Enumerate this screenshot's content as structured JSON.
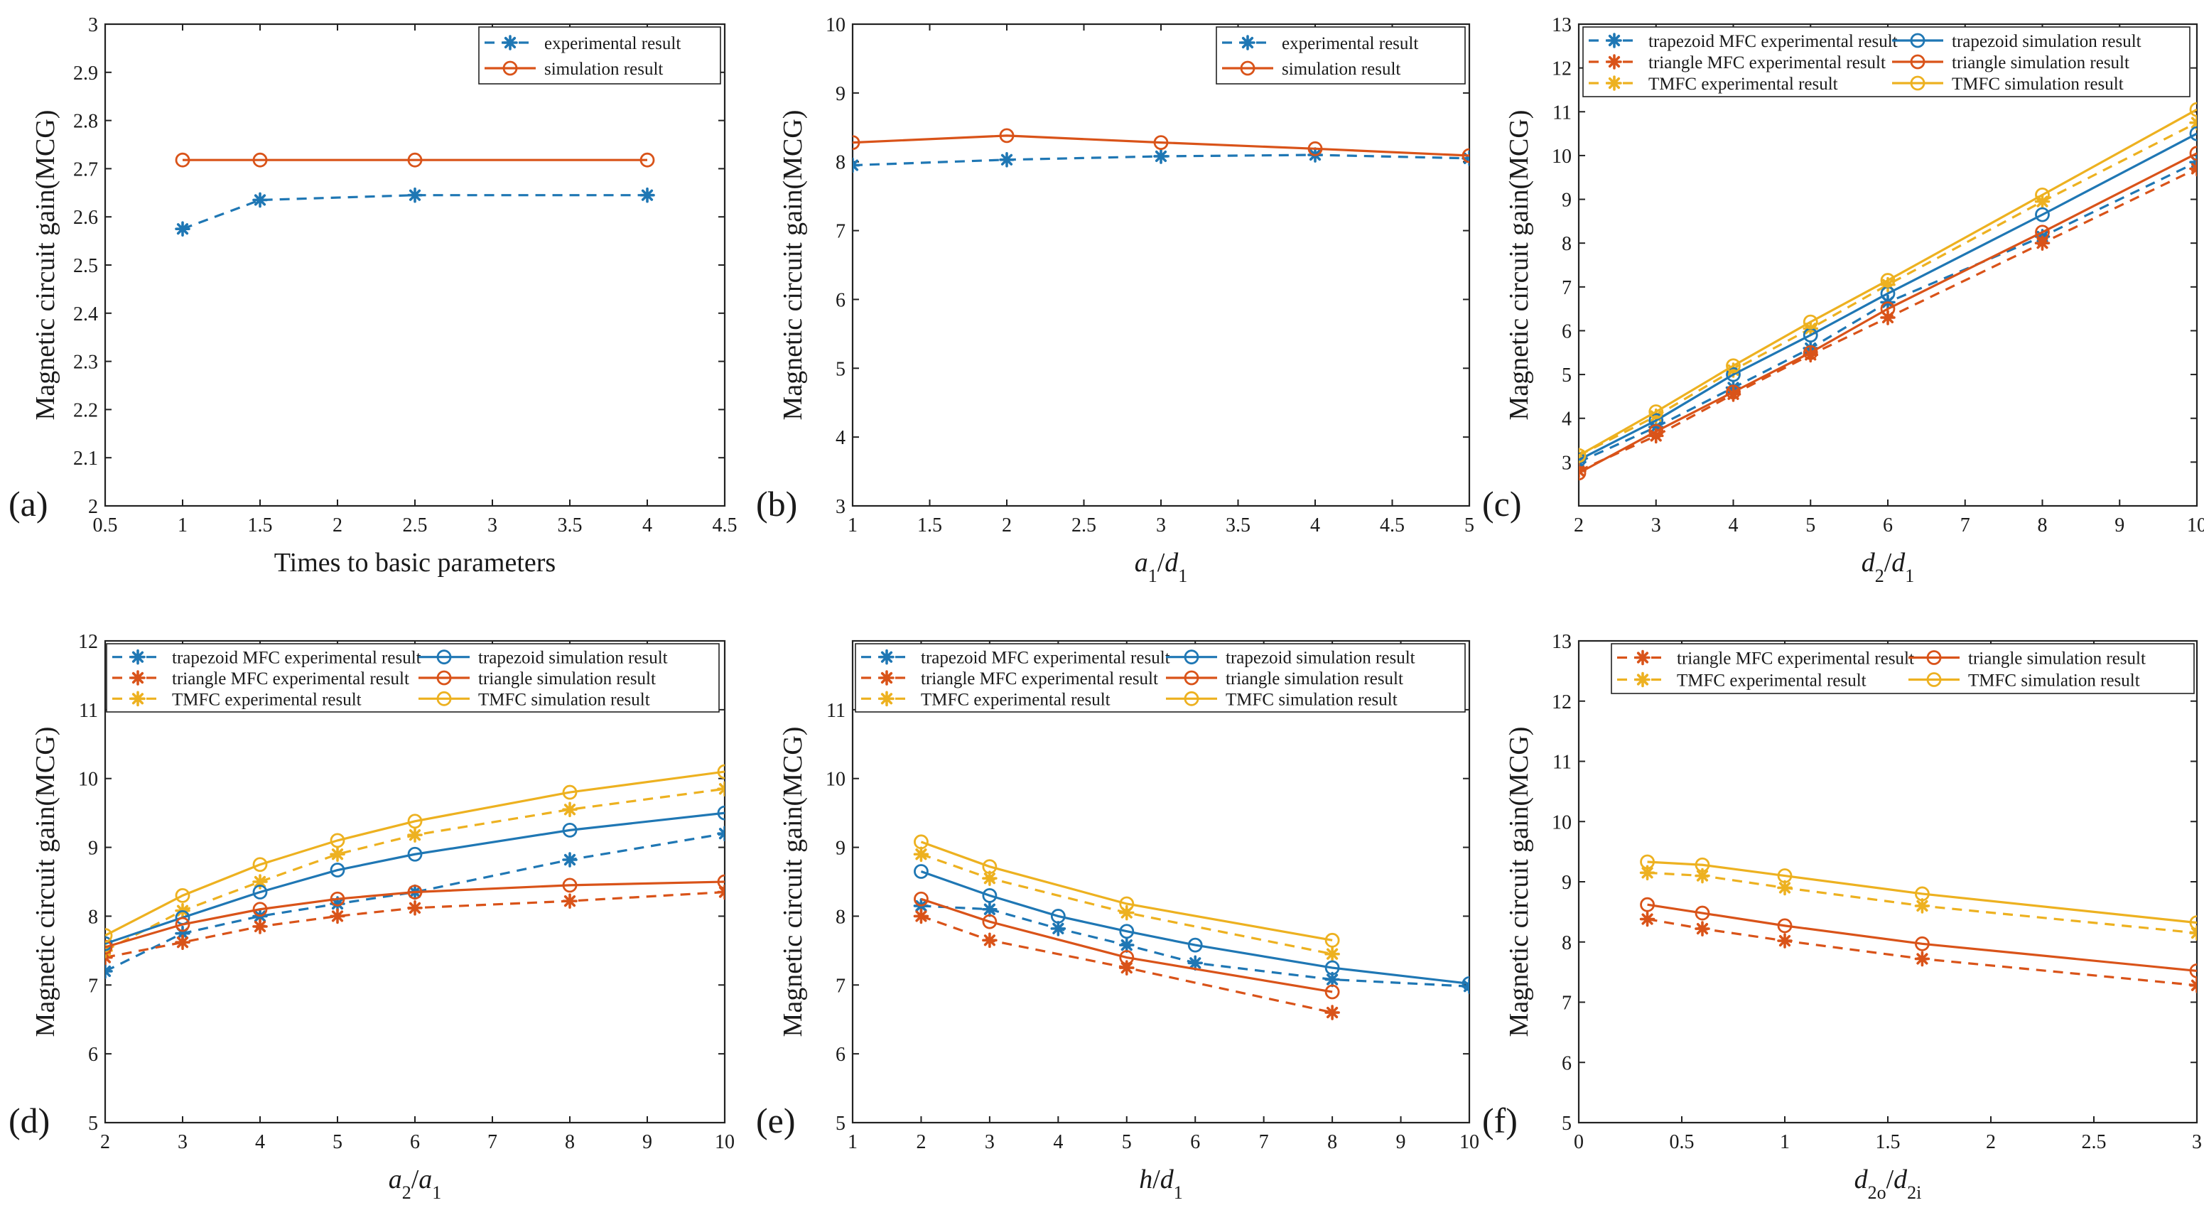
{
  "colors": {
    "blue": "#1f77b4",
    "red": "#d95319",
    "yellow": "#edb120",
    "axis": "#222222"
  },
  "chart_data": [
    {
      "type": "line",
      "panel_label": "(a)",
      "xlabel": "Times to basic parameters",
      "ylabel": "Magnetic circuit gain(MCG)",
      "xlim": [
        0.5,
        4.5
      ],
      "ylim": [
        2,
        3
      ],
      "xticks": [
        0.5,
        1,
        1.5,
        2,
        2.5,
        3,
        3.5,
        4,
        4.5
      ],
      "xtick_labels": [
        "0.5",
        "1",
        "1.5",
        "2",
        "2.5",
        "3",
        "3.5",
        "4",
        "4.5"
      ],
      "yticks": [
        2,
        2.1,
        2.2,
        2.3,
        2.4,
        2.5,
        2.6,
        2.7,
        2.8,
        2.9,
        3
      ],
      "ytick_labels": [
        "2",
        "2.1",
        "2.2",
        "2.3",
        "2.4",
        "2.5",
        "2.6",
        "2.7",
        "2.8",
        "2.9",
        "3"
      ],
      "legend_position": "top-right",
      "legend_columns": 1,
      "series": [
        {
          "name": "experimental result",
          "color": "#1f77b4",
          "style": "dashed",
          "marker": "star",
          "x": [
            1,
            1.5,
            2.5,
            4
          ],
          "y": [
            2.575,
            2.635,
            2.645,
            2.645
          ]
        },
        {
          "name": "simulation result",
          "color": "#d95319",
          "style": "solid",
          "marker": "circle",
          "x": [
            1,
            1.5,
            2.5,
            4
          ],
          "y": [
            2.718,
            2.718,
            2.718,
            2.718
          ]
        }
      ]
    },
    {
      "type": "line",
      "panel_label": "(b)",
      "xlabel": "a1/d1",
      "xlabel_parts": [
        {
          "t": "a",
          "i": true
        },
        {
          "t": "1",
          "sub": true
        },
        {
          "t": "/"
        },
        {
          "t": "d",
          "i": true
        },
        {
          "t": "1",
          "sub": true
        }
      ],
      "ylabel": "Magnetic circuit gain(MCG)",
      "xlim": [
        1,
        5
      ],
      "ylim": [
        3,
        10
      ],
      "xticks": [
        1,
        1.5,
        2,
        2.5,
        3,
        3.5,
        4,
        4.5,
        5
      ],
      "xtick_labels": [
        "1",
        "1.5",
        "2",
        "2.5",
        "3",
        "3.5",
        "4",
        "4.5",
        "5"
      ],
      "yticks": [
        3,
        4,
        5,
        6,
        7,
        8,
        9,
        10
      ],
      "ytick_labels": [
        "3",
        "4",
        "5",
        "6",
        "7",
        "8",
        "9",
        "10"
      ],
      "legend_position": "top-right",
      "legend_columns": 1,
      "series": [
        {
          "name": "experimental result",
          "color": "#1f77b4",
          "style": "dashed",
          "marker": "star",
          "x": [
            1,
            2,
            3,
            4,
            5
          ],
          "y": [
            7.95,
            8.03,
            8.08,
            8.1,
            8.05
          ]
        },
        {
          "name": "simulation result",
          "color": "#d95319",
          "style": "solid",
          "marker": "circle",
          "x": [
            1,
            2,
            3,
            4,
            5
          ],
          "y": [
            8.28,
            8.38,
            8.28,
            8.19,
            8.09
          ]
        }
      ]
    },
    {
      "type": "line",
      "panel_label": "(c)",
      "xlabel": "d2/d1",
      "xlabel_parts": [
        {
          "t": "d",
          "i": true
        },
        {
          "t": "2",
          "sub": true
        },
        {
          "t": "/"
        },
        {
          "t": "d",
          "i": true
        },
        {
          "t": "1",
          "sub": true
        }
      ],
      "ylabel": "Magnetic circuit gain(MCG)",
      "xlim": [
        2,
        10
      ],
      "ylim": [
        2,
        13
      ],
      "xticks": [
        2,
        3,
        4,
        5,
        6,
        7,
        8,
        9,
        10
      ],
      "xtick_labels": [
        "2",
        "3",
        "4",
        "5",
        "6",
        "7",
        "8",
        "9",
        "10"
      ],
      "yticks": [
        2,
        3,
        4,
        5,
        6,
        7,
        8,
        9,
        10,
        11,
        12,
        13
      ],
      "ytick_labels": [
        "",
        "3",
        "4",
        "5",
        "6",
        "7",
        "8",
        "9",
        "10",
        "11",
        "12",
        "13"
      ],
      "legend_position": "top",
      "legend_columns": 2,
      "series": [
        {
          "name": "trapezoid MFC experimental result",
          "color": "#1f77b4",
          "style": "dashed",
          "marker": "star",
          "x": [
            2,
            3,
            4,
            5,
            6,
            8,
            10
          ],
          "y": [
            3.0,
            3.8,
            4.7,
            5.6,
            6.65,
            8.15,
            9.85
          ]
        },
        {
          "name": "triangle MFC experimental result",
          "color": "#d95319",
          "style": "dashed",
          "marker": "star",
          "x": [
            2,
            3,
            4,
            5,
            6,
            8,
            10
          ],
          "y": [
            2.8,
            3.6,
            4.55,
            5.45,
            6.3,
            8.0,
            9.7
          ]
        },
        {
          "name": "TMFC experimental result",
          "color": "#edb120",
          "style": "dashed",
          "marker": "star",
          "x": [
            2,
            3,
            4,
            5,
            6,
            8,
            10
          ],
          "y": [
            3.15,
            4.05,
            5.1,
            6.05,
            7.05,
            8.95,
            10.75
          ]
        },
        {
          "name": "trapezoid simulation result",
          "color": "#1f77b4",
          "style": "solid",
          "marker": "circle",
          "x": [
            2,
            3,
            4,
            5,
            6,
            8,
            10
          ],
          "y": [
            3.05,
            3.95,
            5.0,
            5.9,
            6.85,
            8.65,
            10.5
          ]
        },
        {
          "name": "triangle simulation result",
          "color": "#d95319",
          "style": "solid",
          "marker": "circle",
          "x": [
            2,
            3,
            4,
            5,
            6,
            8,
            10
          ],
          "y": [
            2.75,
            3.7,
            4.6,
            5.5,
            6.5,
            8.25,
            10.05
          ]
        },
        {
          "name": "TMFC simulation result",
          "color": "#edb120",
          "style": "solid",
          "marker": "circle",
          "x": [
            2,
            3,
            4,
            5,
            6,
            8,
            10
          ],
          "y": [
            3.15,
            4.15,
            5.2,
            6.2,
            7.15,
            9.1,
            11.05
          ]
        }
      ]
    },
    {
      "type": "line",
      "panel_label": "(d)",
      "xlabel": "a2/a1",
      "xlabel_parts": [
        {
          "t": "a",
          "i": true
        },
        {
          "t": "2",
          "sub": true
        },
        {
          "t": "/"
        },
        {
          "t": "a",
          "i": true
        },
        {
          "t": "1",
          "sub": true
        }
      ],
      "ylabel": "Magnetic circuit gain(MCG)",
      "xlim": [
        2,
        10
      ],
      "ylim": [
        5,
        12
      ],
      "xticks": [
        2,
        3,
        4,
        5,
        6,
        7,
        8,
        9,
        10
      ],
      "xtick_labels": [
        "2",
        "3",
        "4",
        "5",
        "6",
        "7",
        "8",
        "9",
        "10"
      ],
      "yticks": [
        5,
        6,
        7,
        8,
        9,
        10,
        11,
        12
      ],
      "ytick_labels": [
        "5",
        "6",
        "7",
        "8",
        "9",
        "10",
        "11",
        "12"
      ],
      "legend_position": "top",
      "legend_columns": 2,
      "series": [
        {
          "name": "trapezoid MFC experimental result",
          "color": "#1f77b4",
          "style": "dashed",
          "marker": "star",
          "x": [
            2,
            3,
            4,
            5,
            6,
            8,
            10
          ],
          "y": [
            7.2,
            7.75,
            8.0,
            8.18,
            8.35,
            8.82,
            9.2
          ]
        },
        {
          "name": "triangle MFC experimental result",
          "color": "#d95319",
          "style": "dashed",
          "marker": "star",
          "x": [
            2,
            3,
            4,
            5,
            6,
            8,
            10
          ],
          "y": [
            7.4,
            7.62,
            7.85,
            8.0,
            8.12,
            8.22,
            8.35
          ]
        },
        {
          "name": "TMFC experimental result",
          "color": "#edb120",
          "style": "dashed",
          "marker": "star",
          "x": [
            2,
            3,
            4,
            5,
            6,
            8,
            10
          ],
          "y": [
            7.5,
            8.08,
            8.5,
            8.9,
            9.18,
            9.55,
            9.85
          ]
        },
        {
          "name": "trapezoid simulation result",
          "color": "#1f77b4",
          "style": "solid",
          "marker": "circle",
          "x": [
            2,
            3,
            4,
            5,
            6,
            8,
            10
          ],
          "y": [
            7.6,
            7.98,
            8.35,
            8.67,
            8.9,
            9.25,
            9.5
          ]
        },
        {
          "name": "triangle simulation result",
          "color": "#d95319",
          "style": "solid",
          "marker": "circle",
          "x": [
            2,
            3,
            4,
            5,
            6,
            8,
            10
          ],
          "y": [
            7.55,
            7.88,
            8.1,
            8.25,
            8.35,
            8.45,
            8.5
          ]
        },
        {
          "name": "TMFC simulation result",
          "color": "#edb120",
          "style": "solid",
          "marker": "circle",
          "x": [
            2,
            3,
            4,
            5,
            6,
            8,
            10
          ],
          "y": [
            7.72,
            8.3,
            8.75,
            9.1,
            9.38,
            9.8,
            10.1
          ]
        }
      ]
    },
    {
      "type": "line",
      "panel_label": "(e)",
      "xlabel": "h/d1",
      "xlabel_parts": [
        {
          "t": "h",
          "i": true
        },
        {
          "t": "/"
        },
        {
          "t": "d",
          "i": true
        },
        {
          "t": "1",
          "sub": true
        }
      ],
      "ylabel": "Magnetic circuit gain(MCG)",
      "xlim": [
        1,
        10
      ],
      "ylim": [
        5,
        12
      ],
      "xticks": [
        1,
        2,
        3,
        4,
        5,
        6,
        7,
        8,
        9,
        10
      ],
      "xtick_labels": [
        "1",
        "2",
        "3",
        "4",
        "5",
        "6",
        "7",
        "8",
        "9",
        "10"
      ],
      "yticks": [
        5,
        6,
        7,
        8,
        9,
        10,
        11,
        12
      ],
      "ytick_labels": [
        "5",
        "6",
        "7",
        "8",
        "9",
        "10",
        "11",
        ""
      ],
      "legend_position": "top",
      "legend_columns": 2,
      "series": [
        {
          "name": "trapezoid MFC experimental result",
          "color": "#1f77b4",
          "style": "dashed",
          "marker": "star",
          "x": [
            2,
            3,
            4,
            5,
            6,
            8,
            10
          ],
          "y": [
            8.15,
            8.1,
            7.82,
            7.58,
            7.32,
            7.08,
            6.98
          ]
        },
        {
          "name": "triangle MFC experimental result",
          "color": "#d95319",
          "style": "dashed",
          "marker": "star",
          "x": [
            2,
            3,
            5,
            8
          ],
          "y": [
            8.0,
            7.65,
            7.25,
            6.6
          ]
        },
        {
          "name": "TMFC experimental result",
          "color": "#edb120",
          "style": "dashed",
          "marker": "star",
          "x": [
            2,
            3,
            5,
            8
          ],
          "y": [
            8.9,
            8.55,
            8.05,
            7.45
          ]
        },
        {
          "name": "trapezoid simulation result",
          "color": "#1f77b4",
          "style": "solid",
          "marker": "circle",
          "x": [
            2,
            3,
            4,
            5,
            6,
            8,
            10
          ],
          "y": [
            8.65,
            8.3,
            8.0,
            7.78,
            7.58,
            7.25,
            7.02
          ]
        },
        {
          "name": "triangle simulation result",
          "color": "#d95319",
          "style": "solid",
          "marker": "circle",
          "x": [
            2,
            3,
            5,
            8
          ],
          "y": [
            8.25,
            7.92,
            7.4,
            6.9
          ]
        },
        {
          "name": "TMFC simulation result",
          "color": "#edb120",
          "style": "solid",
          "marker": "circle",
          "x": [
            2,
            3,
            5,
            8
          ],
          "y": [
            9.08,
            8.72,
            8.18,
            7.65
          ]
        }
      ]
    },
    {
      "type": "line",
      "panel_label": "(f)",
      "xlabel": "d2o/d2i",
      "xlabel_parts": [
        {
          "t": "d",
          "i": true
        },
        {
          "t": "2o",
          "sub": true
        },
        {
          "t": "/"
        },
        {
          "t": "d",
          "i": true
        },
        {
          "t": "2i",
          "sub": true
        }
      ],
      "ylabel": "Magnetic circuit gain(MCG)",
      "xlim": [
        0,
        3
      ],
      "ylim": [
        5,
        13
      ],
      "xticks": [
        0,
        0.5,
        1,
        1.5,
        2,
        2.5,
        3
      ],
      "xtick_labels": [
        "0",
        "0.5",
        "1",
        "1.5",
        "2",
        "2.5",
        "3"
      ],
      "yticks": [
        5,
        6,
        7,
        8,
        9,
        10,
        11,
        12,
        13
      ],
      "ytick_labels": [
        "5",
        "6",
        "7",
        "8",
        "9",
        "10",
        "11",
        "12",
        "13"
      ],
      "legend_position": "top",
      "legend_columns": 2,
      "series": [
        {
          "name": "triangle MFC experimental result",
          "color": "#d95319",
          "style": "dashed",
          "marker": "star",
          "x": [
            0.333,
            0.6,
            1,
            1.667,
            3
          ],
          "y": [
            8.38,
            8.22,
            8.02,
            7.72,
            7.28
          ]
        },
        {
          "name": "TMFC experimental result",
          "color": "#edb120",
          "style": "dashed",
          "marker": "star",
          "x": [
            0.333,
            0.6,
            1,
            1.667,
            3
          ],
          "y": [
            9.15,
            9.1,
            8.9,
            8.6,
            8.15
          ]
        },
        {
          "name": "triangle simulation result",
          "color": "#d95319",
          "style": "solid",
          "marker": "circle",
          "x": [
            0.333,
            0.6,
            1,
            1.667,
            3
          ],
          "y": [
            8.62,
            8.48,
            8.27,
            7.97,
            7.52
          ]
        },
        {
          "name": "TMFC simulation result",
          "color": "#edb120",
          "style": "solid",
          "marker": "circle",
          "x": [
            0.333,
            0.6,
            1,
            1.667,
            3
          ],
          "y": [
            9.33,
            9.28,
            9.1,
            8.8,
            8.32
          ]
        }
      ]
    }
  ]
}
